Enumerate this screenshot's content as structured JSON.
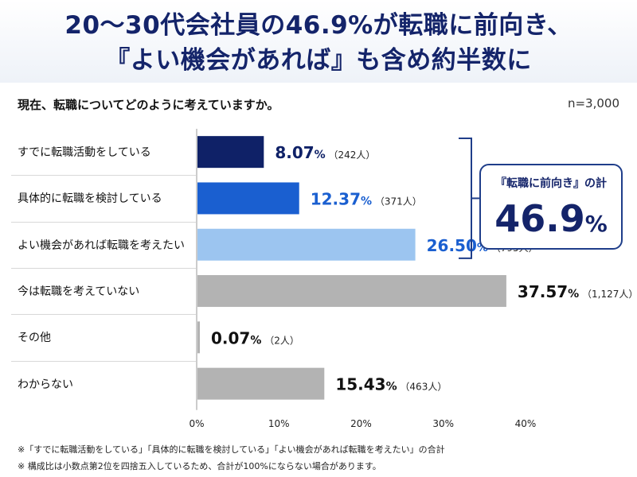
{
  "title_line1": "20～30代会社員の46.9%が転職に前向き、",
  "title_line2": "『よい機会があれば』も含め約半数に",
  "question": "現在、転職についてどのように考えていますか。",
  "sample": "n=3,000",
  "callout": {
    "label": "『転職に前向き』の計",
    "value": "46.9",
    "unit": "%"
  },
  "footnotes": [
    "※「すでに転職活動をしている」「具体的に転職を検討している」「よい機会があれば転職を考えたい」の合計",
    "※ 構成比は小数点第2位を四捨五入しているため、合計が100%にならない場合があります。"
  ],
  "colors": {
    "title": "#14246a",
    "dark": "#0f2167",
    "mid": "#1a5fd0",
    "light": "#9cc5f0",
    "gray": "#b3b3b3"
  },
  "chart_data": {
    "type": "bar",
    "orientation": "horizontal",
    "categories": [
      "すでに転職活動をしている",
      "具体的に転職を検討している",
      "よい機会があれば転職を考えたい",
      "今は転職を考えていない",
      "その他",
      "わからない"
    ],
    "values": [
      8.07,
      12.37,
      26.5,
      37.57,
      0.07,
      15.43
    ],
    "value_labels": [
      "8.07",
      "12.37",
      "26.50",
      "37.57",
      "0.07",
      "15.43"
    ],
    "counts": [
      "（242人）",
      "（371人）",
      "（795人）",
      "（1,127人）",
      "（2人）",
      "（463人）"
    ],
    "xlim": [
      0,
      40
    ],
    "x_ticks": [
      "0%",
      "10%",
      "20%",
      "30%",
      "40%"
    ],
    "unit": "%",
    "bar_colors": [
      "#0f2167",
      "#1a5fd0",
      "#9cc5f0",
      "#b3b3b3",
      "#b3b3b3",
      "#b3b3b3"
    ],
    "label_colors": [
      "#0f2167",
      "#1a5fd0",
      "#1a5fd0",
      "#111111",
      "#111111",
      "#111111"
    ]
  }
}
